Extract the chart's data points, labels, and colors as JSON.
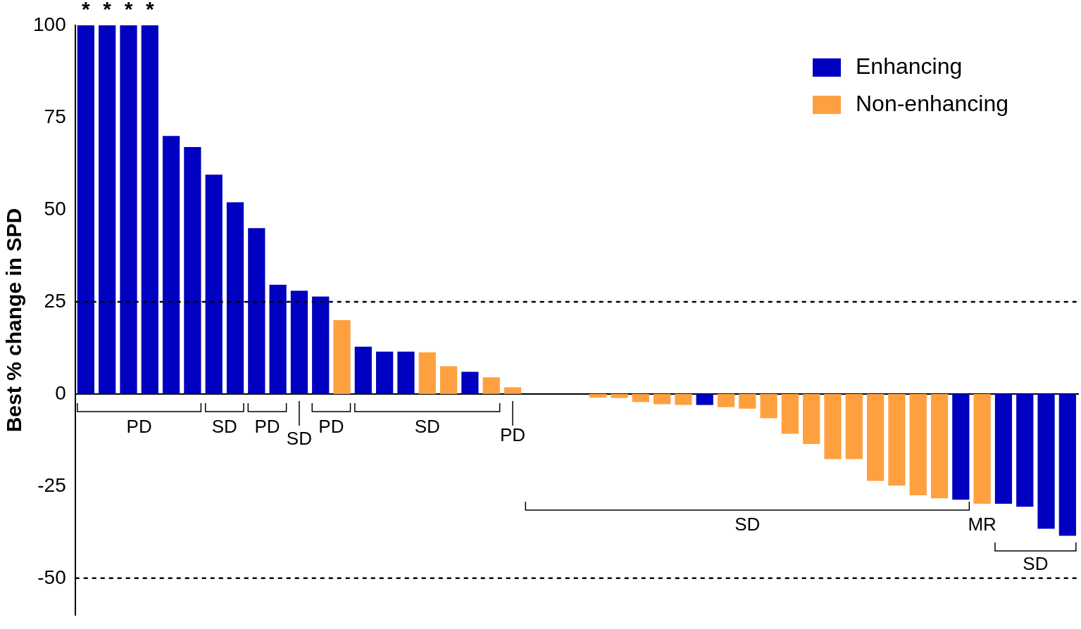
{
  "chart_data": {
    "type": "bar",
    "ylabel": "Best % change in SPD",
    "categories": [
      null,
      null,
      null,
      null,
      null,
      null,
      null,
      null,
      null,
      null,
      null,
      null,
      null,
      null,
      null,
      null,
      null,
      null,
      null,
      null,
      null,
      null,
      null,
      null,
      null,
      null,
      null,
      null,
      null,
      null,
      null,
      null,
      null,
      null,
      null,
      null,
      null,
      null,
      null,
      null,
      null,
      null,
      null,
      null,
      null,
      null,
      null
    ],
    "series": [
      {
        "name": "Enhancing",
        "color": "#0000c0",
        "values": [
          100,
          100,
          100,
          100,
          70,
          67,
          59.5,
          52,
          45,
          29.6,
          28,
          26.4,
          null,
          12.8,
          11.5,
          11.5,
          null,
          null,
          6,
          null,
          null,
          null,
          null,
          null,
          null,
          null,
          null,
          null,
          null,
          -3,
          null,
          null,
          null,
          null,
          null,
          null,
          null,
          null,
          null,
          null,
          null,
          -28.7,
          null,
          -29.8,
          -30.6,
          -36.6,
          -38.5
        ]
      },
      {
        "name": "Non-enhancing",
        "color": "#ffa040",
        "values": [
          null,
          null,
          null,
          null,
          null,
          null,
          null,
          null,
          null,
          null,
          null,
          null,
          20,
          null,
          null,
          null,
          11.3,
          7.5,
          null,
          4.5,
          1.8,
          0,
          0,
          0,
          -1,
          -1.1,
          -2.2,
          -2.8,
          -3,
          null,
          -3.6,
          -4,
          -6.6,
          -10.8,
          -13.6,
          -17.7,
          -17.7,
          -23.6,
          -24.9,
          -27.5,
          -28.3,
          null,
          -29.8,
          null,
          null,
          null,
          null
        ]
      }
    ],
    "ylim": [
      -60,
      100
    ],
    "yticks": [
      -50,
      -25,
      0,
      25,
      50,
      75,
      100
    ],
    "grid": false,
    "legend": "top right",
    "tick_labels": "y",
    "ref_lines": [
      {
        "axis": "y",
        "value": 25,
        "line_style": "dashed",
        "color": "#000000"
      },
      {
        "axis": "y",
        "value": -50,
        "line_style": "dashed",
        "color": "#000000"
      }
    ],
    "annotations": [
      "*",
      "*",
      "*",
      "*",
      "PD",
      "SD",
      "PD",
      "SD",
      "PD",
      "SD",
      "PD",
      "SD",
      "MR",
      "SD"
    ]
  }
}
